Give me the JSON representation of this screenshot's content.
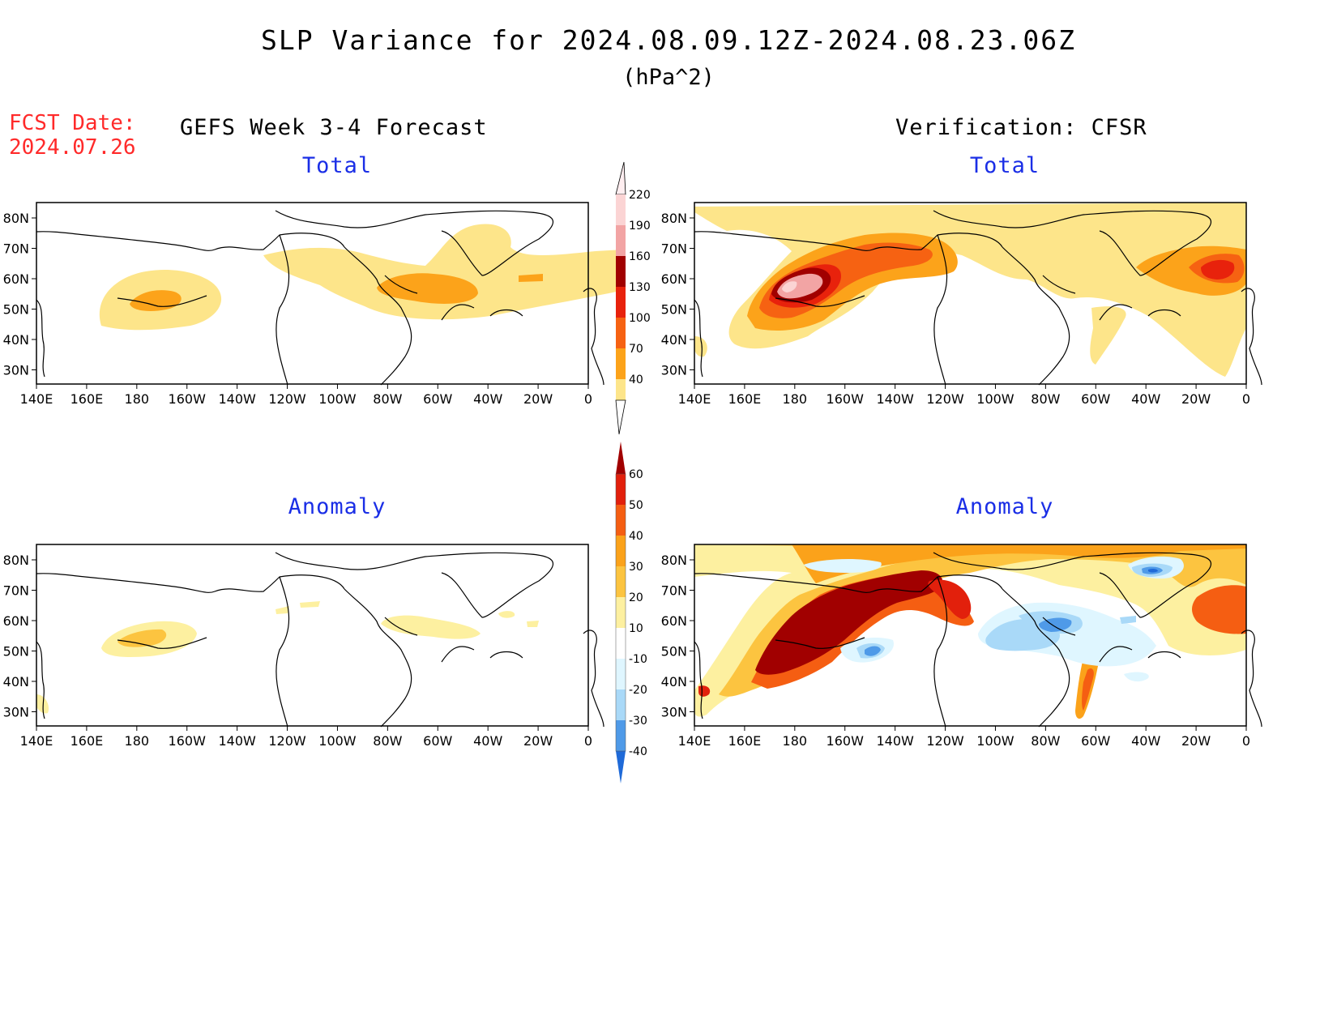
{
  "title": "SLP Variance for 2024.08.09.12Z-2024.08.23.06Z",
  "units": "(hPa^2)",
  "fcst_date": {
    "label": "FCST Date:",
    "value": "2024.07.26"
  },
  "left_heading": "GEFS Week 3-4 Forecast",
  "right_heading": "Verification: CFSR",
  "panel_titles": {
    "total": "Total",
    "anomaly": "Anomaly"
  },
  "map": {
    "lon_ticks": [
      "140E",
      "160E",
      "180",
      "160W",
      "140W",
      "120W",
      "100W",
      "80W",
      "60W",
      "40W",
      "20W",
      "0"
    ],
    "lat_ticks": [
      "80N",
      "70N",
      "60N",
      "50N",
      "40N",
      "30N"
    ]
  },
  "colorbars": {
    "total": {
      "levels": [
        "40",
        "70",
        "100",
        "130",
        "160",
        "190",
        "220"
      ],
      "colors": [
        "#fde58a",
        "#fca31a",
        "#f66212",
        "#e8220c",
        "#a10000",
        "#f2a4a4",
        "#fbd4d4",
        "#ffeef0"
      ]
    },
    "anomaly": {
      "levels": [
        "60",
        "50",
        "40",
        "30",
        "20",
        "10",
        "-10",
        "-20",
        "-30",
        "-40"
      ],
      "colors": [
        "#a10000",
        "#e2200c",
        "#f55e12",
        "#fba21a",
        "#fcc440",
        "#fdf0a0",
        "#ffffff",
        "#dff6ff",
        "#a9d9f8",
        "#4f9ae8",
        "#1f6ad8"
      ]
    }
  },
  "fill_colors": {
    "c40": "#fde58a",
    "c70": "#fca31a",
    "c100": "#f66212",
    "c130": "#e8220c",
    "c160": "#a10000",
    "c190": "#f2a4a4",
    "c220": "#fbd4d4",
    "a10": "#fdf0a0",
    "a20": "#fcc440",
    "a30": "#fba21a",
    "a40": "#f55e12",
    "a50": "#e2200c",
    "a60": "#a10000",
    "n10": "#dff6ff",
    "n20": "#a9d9f8",
    "n30": "#4f9ae8",
    "n40": "#1f6ad8"
  }
}
